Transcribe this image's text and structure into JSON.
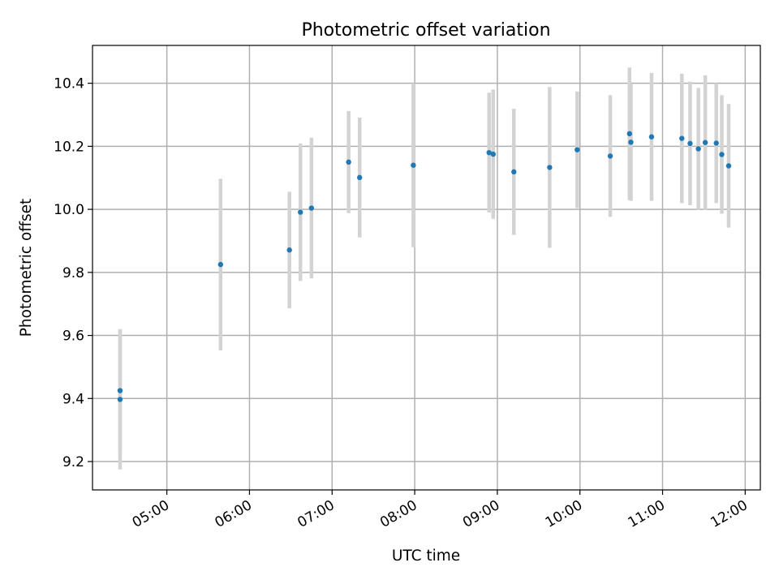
{
  "chart_data": {
    "type": "scatter",
    "title": "Photometric offset variation",
    "xlabel": "UTC time",
    "ylabel": "Photometric offset",
    "x_unit": "UTC time of day (HH:MM)",
    "xlim": [
      "04:06",
      "12:11"
    ],
    "ylim": [
      9.11,
      10.52
    ],
    "x_ticks": [
      "05:00",
      "06:00",
      "07:00",
      "08:00",
      "09:00",
      "10:00",
      "11:00",
      "12:00"
    ],
    "y_ticks": [
      9.2,
      9.4,
      9.6,
      9.8,
      10.0,
      10.2,
      10.4
    ],
    "grid": true,
    "marker_color": "#1f77b4",
    "errorbar_color": "#d3d3d3",
    "series": [
      {
        "points": [
          {
            "x": "04:26",
            "y": 9.397,
            "err": 0.222
          },
          {
            "x": "04:26",
            "y": 9.425,
            "err": 0.195
          },
          {
            "x": "05:39",
            "y": 9.825,
            "err": 0.272
          },
          {
            "x": "06:29",
            "y": 9.871,
            "err": 0.185
          },
          {
            "x": "06:37",
            "y": 9.991,
            "err": 0.218
          },
          {
            "x": "06:45",
            "y": 10.004,
            "err": 0.223
          },
          {
            "x": "07:12",
            "y": 10.15,
            "err": 0.162
          },
          {
            "x": "07:20",
            "y": 10.101,
            "err": 0.19
          },
          {
            "x": "07:59",
            "y": 10.14,
            "err": 0.26
          },
          {
            "x": "08:54",
            "y": 10.18,
            "err": 0.19
          },
          {
            "x": "08:57",
            "y": 10.175,
            "err": 0.205
          },
          {
            "x": "09:12",
            "y": 10.119,
            "err": 0.2
          },
          {
            "x": "09:38",
            "y": 10.133,
            "err": 0.255
          },
          {
            "x": "09:58",
            "y": 10.189,
            "err": 0.185
          },
          {
            "x": "10:22",
            "y": 10.169,
            "err": 0.193
          },
          {
            "x": "10:36",
            "y": 10.24,
            "err": 0.21
          },
          {
            "x": "10:37",
            "y": 10.213,
            "err": 0.186
          },
          {
            "x": "10:52",
            "y": 10.23,
            "err": 0.203
          },
          {
            "x": "11:14",
            "y": 10.225,
            "err": 0.205
          },
          {
            "x": "11:20",
            "y": 10.209,
            "err": 0.196
          },
          {
            "x": "11:26",
            "y": 10.192,
            "err": 0.193
          },
          {
            "x": "11:31",
            "y": 10.212,
            "err": 0.213
          },
          {
            "x": "11:39",
            "y": 10.21,
            "err": 0.19
          },
          {
            "x": "11:43",
            "y": 10.174,
            "err": 0.188
          },
          {
            "x": "11:48",
            "y": 10.138,
            "err": 0.196
          }
        ]
      }
    ]
  }
}
